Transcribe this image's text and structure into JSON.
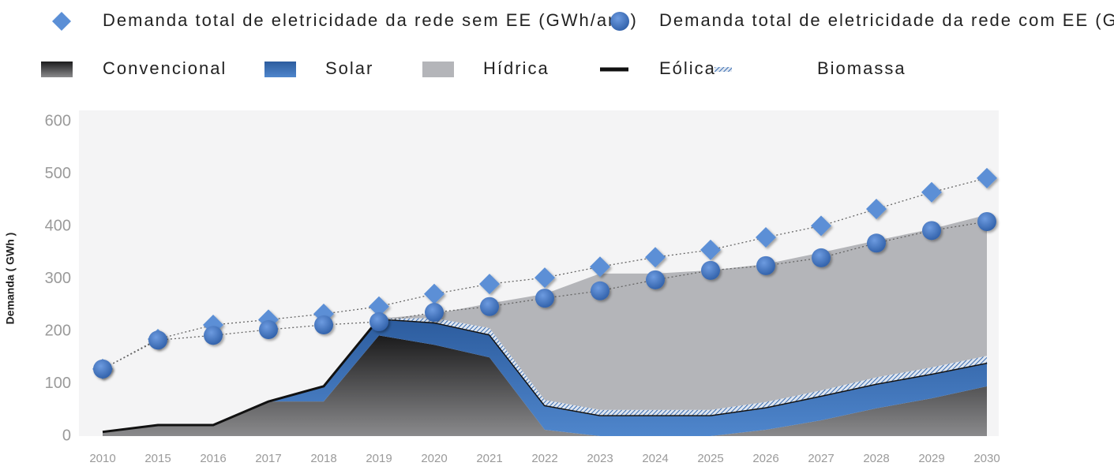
{
  "chart_data": {
    "type": "stacked_area",
    "y_label": "Demanda ( GWh )",
    "categories": [
      "2010",
      "2015",
      "2016",
      "2017",
      "2018",
      "2019",
      "2020",
      "2021",
      "2022",
      "2023",
      "2024",
      "2025",
      "2026",
      "2027",
      "2028",
      "2029",
      "2030"
    ],
    "ylim": [
      0,
      600
    ],
    "yticks": [
      0,
      100,
      200,
      300,
      400,
      500,
      600
    ],
    "series": [
      {
        "name": "Demanda total de eletricidade da rede sem EE (GWh/ano)",
        "kind": "diamond",
        "color": "#5b8fd6",
        "values": [
          128,
          185,
          212,
          222,
          233,
          247,
          271,
          290,
          302,
          323,
          341,
          355,
          379,
          401,
          433,
          465,
          492
        ]
      },
      {
        "name": "Demanda total de eletricidade da rede com EE (GWh/ano)",
        "kind": "circle",
        "color": "#3f73bd",
        "values": [
          128,
          183,
          192,
          203,
          212,
          218,
          236,
          247,
          263,
          277,
          298,
          316,
          325,
          340,
          368,
          392,
          409
        ]
      },
      {
        "name": "Convencional",
        "kind": "area",
        "color": "#3a3a3c",
        "values": [
          8,
          21,
          21,
          66,
          66,
          192,
          174,
          150,
          12,
          0,
          0,
          0,
          12,
          30,
          53,
          72,
          95
        ]
      },
      {
        "name": "Solar",
        "kind": "area",
        "color": "#3a6db2",
        "values": [
          0,
          0,
          0,
          0,
          29,
          30,
          41,
          42,
          45,
          38,
          38,
          38,
          41,
          45,
          45,
          45,
          43
        ]
      },
      {
        "name": "Hídrica",
        "kind": "area",
        "color": "#b4b5b9",
        "values": [
          0,
          0,
          0,
          0,
          0,
          0,
          8,
          47,
          202,
          260,
          260,
          266,
          263,
          263,
          261,
          264,
          269
        ]
      },
      {
        "name": "Eólica",
        "kind": "line",
        "color": "#111111",
        "values": [
          0,
          0,
          0,
          0,
          0,
          2,
          2,
          2,
          2,
          2,
          2,
          2,
          2,
          2,
          2,
          2,
          2
        ]
      },
      {
        "name": "Biomassa",
        "kind": "hatch",
        "color": "#3a6db2",
        "values": [
          0,
          0,
          0,
          0,
          0,
          0,
          8,
          12,
          10,
          10,
          10,
          10,
          10,
          10,
          12,
          12,
          13
        ]
      }
    ]
  }
}
